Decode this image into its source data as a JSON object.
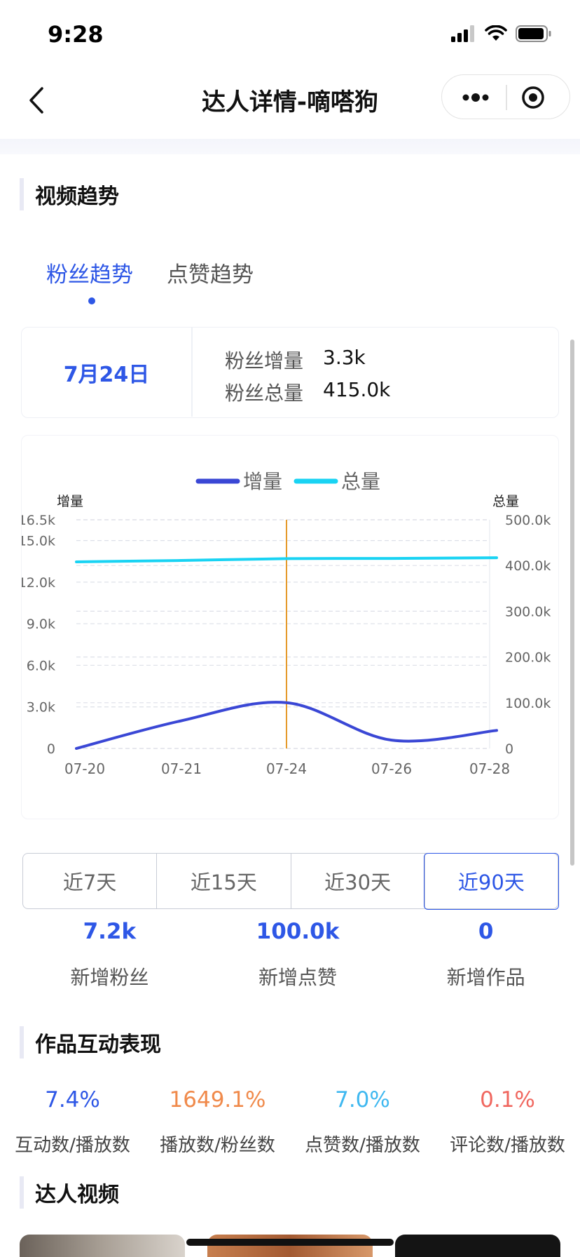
{
  "status_bar": {
    "time": "9:28"
  },
  "nav": {
    "title": "达人详情-嘀嗒狗"
  },
  "sections": {
    "video_trend": "视频趋势",
    "interaction": "作品互动表现",
    "videos": "达人视频"
  },
  "tabs": [
    {
      "label": "粉丝趋势",
      "active": true
    },
    {
      "label": "点赞趋势",
      "active": false
    }
  ],
  "info_card": {
    "date": "7月24日",
    "rows": [
      {
        "label": "粉丝增量",
        "value": "3.3k"
      },
      {
        "label": "粉丝总量",
        "value": "415.0k"
      }
    ]
  },
  "chart_data": {
    "type": "line",
    "legend": [
      "增量",
      "总量"
    ],
    "legend_position": "top-center",
    "y_left_label": "增量",
    "y_right_label": "总量",
    "y_left_ticks": [
      "0",
      "3.0k",
      "6.0k",
      "9.0k",
      "12.0k",
      "15.0k",
      "16.5k"
    ],
    "y_right_ticks": [
      "0",
      "100.0k",
      "200.0k",
      "300.0k",
      "400.0k",
      "500.0k"
    ],
    "y_left_lim": [
      0,
      16500
    ],
    "y_right_lim": [
      0,
      500000
    ],
    "x_ticks": [
      "07-20",
      "07-21",
      "07-24",
      "07-26",
      "07-28"
    ],
    "x": [
      0,
      1,
      2,
      3,
      4
    ],
    "series": [
      {
        "name": "增量",
        "axis": "left",
        "color": "#3a47d5",
        "values": [
          0,
          2000,
          3300,
          600,
          1300
        ]
      },
      {
        "name": "总量",
        "axis": "right",
        "color": "#19d3f3",
        "values": [
          408000,
          411000,
          415000,
          415500,
          417000
        ]
      }
    ],
    "highlight_x": 2,
    "highlight_color": "#e59a2b",
    "grid": true
  },
  "range_buttons": [
    {
      "label": "近7天",
      "active": false
    },
    {
      "label": "近15天",
      "active": false
    },
    {
      "label": "近30天",
      "active": false
    },
    {
      "label": "近90天",
      "active": true
    }
  ],
  "stats": [
    {
      "value": "7.2k",
      "label": "新增粉丝"
    },
    {
      "value": "100.0k",
      "label": "新增点赞"
    },
    {
      "value": "0",
      "label": "新增作品"
    }
  ],
  "ratios": [
    {
      "value": "7.4%",
      "label": "互动数/播放数",
      "color": "#2e57e6"
    },
    {
      "value": "1649.1%",
      "label": "播放数/粉丝数",
      "color": "#f08a4b"
    },
    {
      "value": "7.0%",
      "label": "点赞数/播放数",
      "color": "#3fb8f0"
    },
    {
      "value": "0.1%",
      "label": "评论数/播放数",
      "color": "#f0675f"
    }
  ]
}
